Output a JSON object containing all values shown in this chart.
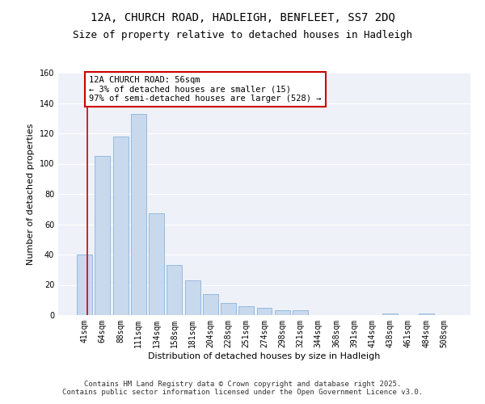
{
  "title": "12A, CHURCH ROAD, HADLEIGH, BENFLEET, SS7 2DQ",
  "subtitle": "Size of property relative to detached houses in Hadleigh",
  "xlabel": "Distribution of detached houses by size in Hadleigh",
  "ylabel": "Number of detached properties",
  "categories": [
    "41sqm",
    "64sqm",
    "88sqm",
    "111sqm",
    "134sqm",
    "158sqm",
    "181sqm",
    "204sqm",
    "228sqm",
    "251sqm",
    "274sqm",
    "298sqm",
    "321sqm",
    "344sqm",
    "368sqm",
    "391sqm",
    "414sqm",
    "438sqm",
    "461sqm",
    "484sqm",
    "508sqm"
  ],
  "values": [
    40,
    105,
    118,
    133,
    67,
    33,
    23,
    14,
    8,
    6,
    5,
    3,
    3,
    0,
    0,
    0,
    0,
    1,
    0,
    1,
    0
  ],
  "bar_color": "#c8d9ee",
  "bar_edge_color": "#8ab4d8",
  "annotation_box_text": "12A CHURCH ROAD: 56sqm\n← 3% of detached houses are smaller (15)\n97% of semi-detached houses are larger (528) →",
  "ylim": [
    0,
    160
  ],
  "yticks": [
    0,
    20,
    40,
    60,
    80,
    100,
    120,
    140,
    160
  ],
  "bg_color": "#eef1f8",
  "grid_color": "#ffffff",
  "footer_line1": "Contains HM Land Registry data © Crown copyright and database right 2025.",
  "footer_line2": "Contains public sector information licensed under the Open Government Licence v3.0.",
  "annotation_box_color": "#ffffff",
  "annotation_box_edge_color": "#cc0000",
  "vline_color": "#cc0000",
  "title_fontsize": 10,
  "subtitle_fontsize": 9,
  "axis_label_fontsize": 8,
  "tick_fontsize": 7,
  "annotation_fontsize": 7.5,
  "footer_fontsize": 6.5
}
